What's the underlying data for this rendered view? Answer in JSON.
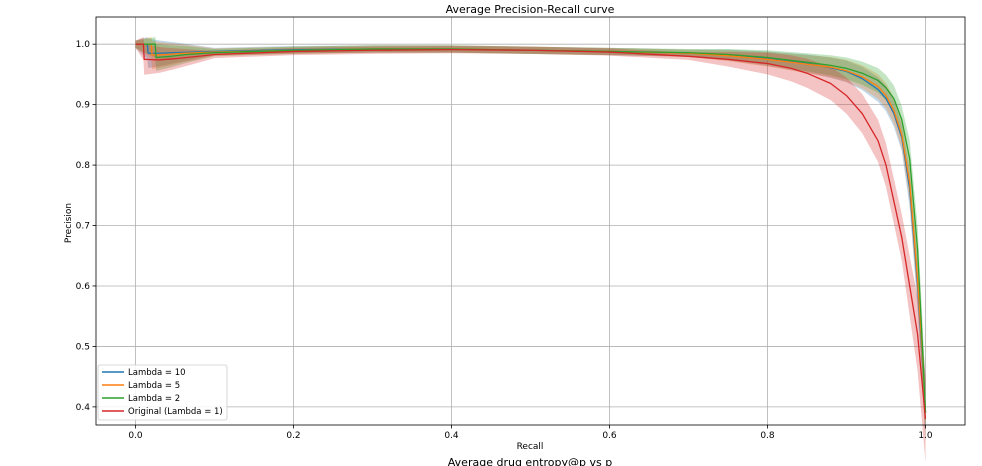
{
  "chart_data": {
    "type": "line",
    "title": "Average Precision-Recall curve",
    "xlabel": "Recall",
    "ylabel": "Precision",
    "caption": "Average drug entropy@p vs p",
    "xlim": [
      -0.05,
      1.05
    ],
    "ylim": [
      0.37,
      1.045
    ],
    "xticks": [
      "0.0",
      "0.2",
      "0.4",
      "0.6",
      "0.8",
      "1.0"
    ],
    "xtick_values": [
      0.0,
      0.2,
      0.4,
      0.6,
      0.8,
      1.0
    ],
    "yticks": [
      "0.4",
      "0.5",
      "0.6",
      "0.7",
      "0.8",
      "0.9",
      "1.0"
    ],
    "ytick_values": [
      0.4,
      0.5,
      0.6,
      0.7,
      0.8,
      0.9,
      1.0
    ],
    "grid": true,
    "legend_position": "lower-left",
    "series": [
      {
        "name": "Lambda = 10",
        "color": "#1f77b4",
        "x": [
          0.0,
          0.015,
          0.016,
          0.03,
          0.05,
          0.1,
          0.2,
          0.3,
          0.4,
          0.5,
          0.6,
          0.7,
          0.75,
          0.8,
          0.85,
          0.88,
          0.9,
          0.92,
          0.94,
          0.95,
          0.96,
          0.97,
          0.98,
          0.99,
          0.995,
          1.0
        ],
        "y": [
          1.0,
          1.0,
          0.985,
          0.985,
          0.986,
          0.988,
          0.991,
          0.992,
          0.992,
          0.99,
          0.988,
          0.985,
          0.982,
          0.976,
          0.968,
          0.961,
          0.955,
          0.943,
          0.925,
          0.91,
          0.885,
          0.845,
          0.76,
          0.6,
          0.5,
          0.39
        ]
      },
      {
        "name": "Lambda = 5",
        "color": "#ff7f0e",
        "x": [
          0.0,
          0.02,
          0.021,
          0.04,
          0.06,
          0.1,
          0.2,
          0.3,
          0.4,
          0.5,
          0.6,
          0.7,
          0.75,
          0.8,
          0.85,
          0.88,
          0.9,
          0.92,
          0.94,
          0.95,
          0.96,
          0.97,
          0.98,
          0.99,
          0.995,
          1.0
        ],
        "y": [
          1.0,
          1.0,
          0.982,
          0.983,
          0.985,
          0.987,
          0.99,
          0.992,
          0.992,
          0.99,
          0.988,
          0.985,
          0.981,
          0.975,
          0.967,
          0.962,
          0.956,
          0.946,
          0.93,
          0.915,
          0.89,
          0.85,
          0.77,
          0.61,
          0.51,
          0.39
        ]
      },
      {
        "name": "Lambda = 2",
        "color": "#2ca02c",
        "x": [
          0.0,
          0.025,
          0.026,
          0.045,
          0.065,
          0.1,
          0.2,
          0.3,
          0.4,
          0.5,
          0.6,
          0.7,
          0.75,
          0.8,
          0.85,
          0.88,
          0.9,
          0.92,
          0.94,
          0.95,
          0.96,
          0.97,
          0.98,
          0.99,
          0.995,
          1.0
        ],
        "y": [
          1.0,
          1.0,
          0.978,
          0.98,
          0.983,
          0.986,
          0.99,
          0.992,
          0.992,
          0.99,
          0.988,
          0.986,
          0.983,
          0.978,
          0.97,
          0.965,
          0.96,
          0.952,
          0.94,
          0.928,
          0.91,
          0.875,
          0.81,
          0.66,
          0.53,
          0.39
        ]
      },
      {
        "name": "Original (Lambda = 1)",
        "color": "#d62728",
        "x": [
          0.0,
          0.01,
          0.011,
          0.03,
          0.05,
          0.08,
          0.1,
          0.2,
          0.3,
          0.4,
          0.5,
          0.6,
          0.7,
          0.75,
          0.8,
          0.83,
          0.85,
          0.88,
          0.9,
          0.92,
          0.94,
          0.95,
          0.96,
          0.97,
          0.98,
          0.99,
          0.995,
          1.0
        ],
        "y": [
          1.0,
          1.0,
          0.975,
          0.974,
          0.976,
          0.98,
          0.983,
          0.988,
          0.99,
          0.991,
          0.99,
          0.987,
          0.98,
          0.975,
          0.968,
          0.96,
          0.952,
          0.935,
          0.915,
          0.885,
          0.84,
          0.8,
          0.74,
          0.68,
          0.6,
          0.52,
          0.45,
          0.38
        ]
      }
    ]
  }
}
